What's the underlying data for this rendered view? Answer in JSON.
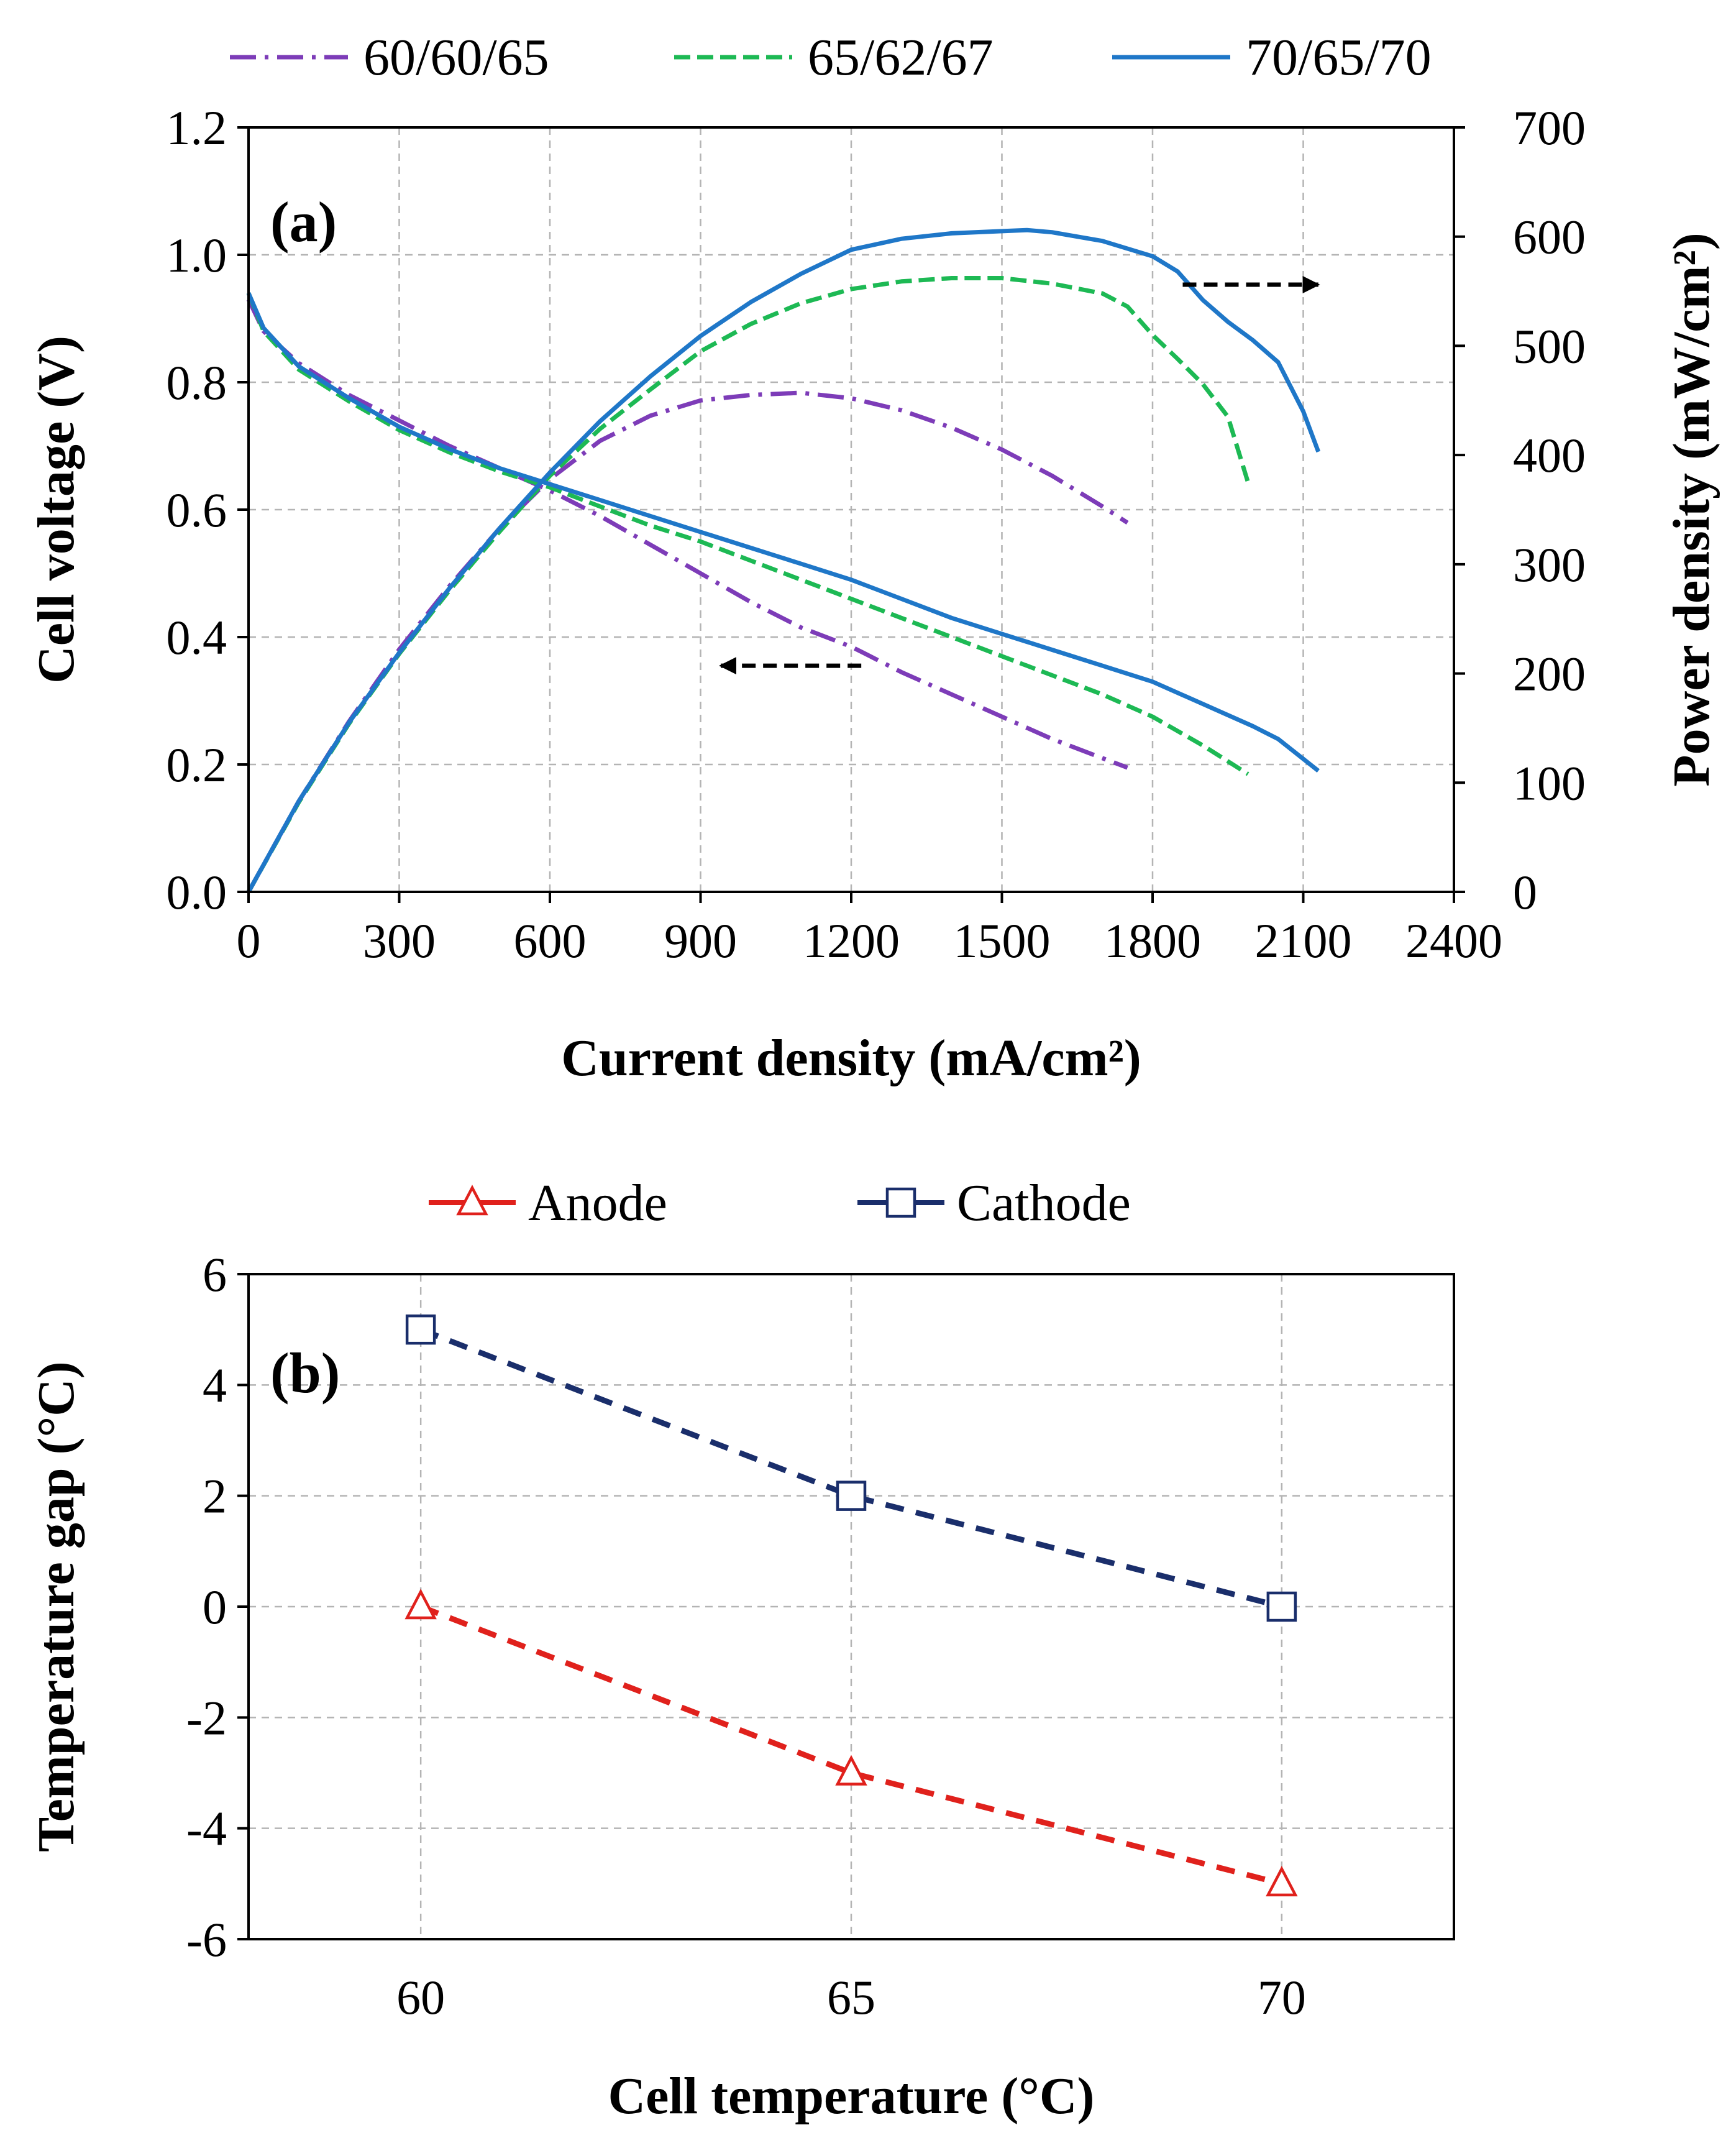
{
  "figure": {
    "panels": [
      "(a)",
      "(b)"
    ]
  },
  "chart_data": [
    {
      "type": "line",
      "panel_label": "(a)",
      "xlabel": "Current density (mA/cm²)",
      "ylabel_left": "Cell voltage (V)",
      "ylabel_right": "Power density (mW/cm²)",
      "xlim": [
        0,
        2400
      ],
      "ylim_left": [
        0,
        1.2
      ],
      "ylim_right": [
        0,
        700
      ],
      "x_ticks": [
        "0",
        "300",
        "600",
        "900",
        "1200",
        "1500",
        "1800",
        "2100",
        "2400"
      ],
      "y_ticks_left": [
        "0.0",
        "0.2",
        "0.4",
        "0.6",
        "0.8",
        "1.0",
        "1.2"
      ],
      "y_ticks_right": [
        "0",
        "100",
        "200",
        "300",
        "400",
        "500",
        "600",
        "700"
      ],
      "grid": true,
      "legend_position": "top",
      "annotations": [
        {
          "type": "arrow",
          "direction": "left",
          "axis": "voltage",
          "from": [
            1220,
            0.355
          ],
          "to": [
            940,
            0.355
          ]
        },
        {
          "type": "arrow",
          "direction": "right",
          "axis": "power",
          "from": [
            1860,
            556
          ],
          "to": [
            2130,
            556
          ]
        }
      ],
      "series": [
        {
          "name": "60/60/65",
          "color": "#7d3cb8",
          "style": "dashdot",
          "voltage": [
            [
              0,
              0.93
            ],
            [
              30,
              0.88
            ],
            [
              100,
              0.83
            ],
            [
              200,
              0.78
            ],
            [
              300,
              0.74
            ],
            [
              400,
              0.7
            ],
            [
              500,
              0.665
            ],
            [
              600,
              0.63
            ],
            [
              700,
              0.59
            ],
            [
              800,
              0.545
            ],
            [
              900,
              0.5
            ],
            [
              1000,
              0.455
            ],
            [
              1100,
              0.415
            ],
            [
              1200,
              0.385
            ],
            [
              1300,
              0.345
            ],
            [
              1400,
              0.31
            ],
            [
              1500,
              0.275
            ],
            [
              1600,
              0.24
            ],
            [
              1700,
              0.21
            ],
            [
              1750,
              0.195
            ]
          ],
          "power": [
            [
              0,
              0
            ],
            [
              100,
              83
            ],
            [
              200,
              156
            ],
            [
              300,
              222
            ],
            [
              400,
              280
            ],
            [
              500,
              333
            ],
            [
              600,
              378
            ],
            [
              700,
              413
            ],
            [
              800,
              436
            ],
            [
              900,
              450
            ],
            [
              1000,
              455
            ],
            [
              1100,
              457
            ],
            [
              1200,
              452
            ],
            [
              1300,
              441
            ],
            [
              1400,
              425
            ],
            [
              1500,
              405
            ],
            [
              1600,
              381
            ],
            [
              1700,
              353
            ],
            [
              1750,
              338
            ]
          ]
        },
        {
          "name": "65/62/67",
          "color": "#1db954",
          "style": "dashed",
          "voltage": [
            [
              0,
              0.94
            ],
            [
              30,
              0.88
            ],
            [
              100,
              0.82
            ],
            [
              200,
              0.77
            ],
            [
              300,
              0.725
            ],
            [
              400,
              0.69
            ],
            [
              500,
              0.66
            ],
            [
              600,
              0.635
            ],
            [
              700,
              0.605
            ],
            [
              800,
              0.575
            ],
            [
              900,
              0.55
            ],
            [
              1000,
              0.52
            ],
            [
              1100,
              0.49
            ],
            [
              1200,
              0.46
            ],
            [
              1300,
              0.43
            ],
            [
              1400,
              0.4
            ],
            [
              1500,
              0.37
            ],
            [
              1600,
              0.34
            ],
            [
              1700,
              0.31
            ],
            [
              1800,
              0.275
            ],
            [
              1900,
              0.23
            ],
            [
              1990,
              0.185
            ]
          ],
          "power": [
            [
              0,
              0
            ],
            [
              100,
              82
            ],
            [
              200,
              154
            ],
            [
              300,
              218
            ],
            [
              400,
              276
            ],
            [
              500,
              330
            ],
            [
              600,
              381
            ],
            [
              700,
              424
            ],
            [
              800,
              460
            ],
            [
              900,
              495
            ],
            [
              1000,
              520
            ],
            [
              1100,
              539
            ],
            [
              1200,
              552
            ],
            [
              1300,
              559
            ],
            [
              1400,
              562
            ],
            [
              1500,
              562
            ],
            [
              1600,
              557
            ],
            [
              1700,
              548
            ],
            [
              1750,
              536
            ],
            [
              1800,
              510
            ],
            [
              1850,
              488
            ],
            [
              1900,
              465
            ],
            [
              1950,
              435
            ],
            [
              1990,
              375
            ]
          ]
        },
        {
          "name": "70/65/70",
          "color": "#1f77c8",
          "style": "solid",
          "voltage": [
            [
              0,
              0.94
            ],
            [
              30,
              0.885
            ],
            [
              100,
              0.825
            ],
            [
              200,
              0.775
            ],
            [
              300,
              0.73
            ],
            [
              400,
              0.695
            ],
            [
              500,
              0.665
            ],
            [
              600,
              0.64
            ],
            [
              700,
              0.615
            ],
            [
              800,
              0.59
            ],
            [
              900,
              0.565
            ],
            [
              1000,
              0.54
            ],
            [
              1100,
              0.515
            ],
            [
              1200,
              0.49
            ],
            [
              1300,
              0.46
            ],
            [
              1400,
              0.43
            ],
            [
              1500,
              0.405
            ],
            [
              1600,
              0.38
            ],
            [
              1700,
              0.355
            ],
            [
              1800,
              0.33
            ],
            [
              1900,
              0.295
            ],
            [
              2000,
              0.26
            ],
            [
              2050,
              0.24
            ],
            [
              2130,
              0.19
            ]
          ],
          "power": [
            [
              0,
              0
            ],
            [
              100,
              83
            ],
            [
              200,
              155
            ],
            [
              300,
              219
            ],
            [
              400,
              278
            ],
            [
              500,
              333
            ],
            [
              600,
              384
            ],
            [
              700,
              431
            ],
            [
              800,
              472
            ],
            [
              900,
              509
            ],
            [
              1000,
              540
            ],
            [
              1100,
              566
            ],
            [
              1200,
              588
            ],
            [
              1300,
              598
            ],
            [
              1400,
              603
            ],
            [
              1500,
              605
            ],
            [
              1550,
              606
            ],
            [
              1600,
              604
            ],
            [
              1700,
              596
            ],
            [
              1800,
              582
            ],
            [
              1850,
              568
            ],
            [
              1900,
              542
            ],
            [
              1950,
              522
            ],
            [
              2000,
              505
            ],
            [
              2050,
              485
            ],
            [
              2100,
              440
            ],
            [
              2130,
              403
            ]
          ]
        }
      ]
    },
    {
      "type": "line",
      "panel_label": "(b)",
      "xlabel": "Cell temperature (°C)",
      "ylabel": "Temperature gap (°C)",
      "xlim": [
        58,
        72
      ],
      "ylim": [
        -6,
        6
      ],
      "x_ticks": [
        "60",
        "65",
        "70"
      ],
      "y_ticks": [
        "-6",
        "-4",
        "-2",
        "0",
        "2",
        "4",
        "6"
      ],
      "grid": true,
      "legend_position": "top",
      "series": [
        {
          "name": "Anode",
          "color": "#e0211c",
          "marker": "triangle",
          "style": "dashed",
          "x": [
            60,
            65,
            70
          ],
          "y": [
            0,
            -3,
            -5
          ]
        },
        {
          "name": "Cathode",
          "color": "#1a2e6b",
          "marker": "square",
          "style": "dashed",
          "x": [
            60,
            65,
            70
          ],
          "y": [
            5,
            2,
            0
          ]
        }
      ]
    }
  ]
}
